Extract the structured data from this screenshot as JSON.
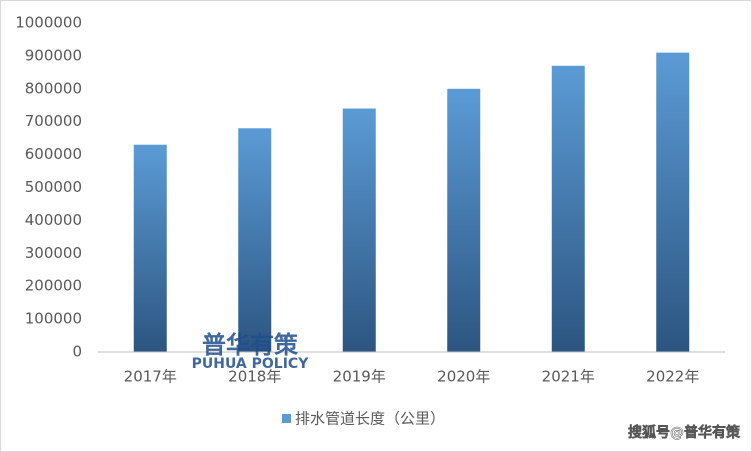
{
  "chart_data": {
    "type": "bar",
    "categories": [
      "2017年",
      "2018年",
      "2019年",
      "2020年",
      "2021年",
      "2022年"
    ],
    "series": [
      {
        "name": "排水管道长度（公里）",
        "color": "#5b9bd5",
        "values": [
          630000,
          680000,
          740000,
          800000,
          870000,
          910000
        ]
      }
    ],
    "ylim": [
      0,
      1000000
    ],
    "yticks": [
      0,
      100000,
      200000,
      300000,
      400000,
      500000,
      600000,
      700000,
      800000,
      900000,
      1000000
    ],
    "grid": false,
    "legend": "bottom"
  },
  "watermarks": {
    "logo_cn": "普华有策",
    "logo_en": "PUHUA POLICY",
    "source": "搜狐号@普华有策"
  }
}
